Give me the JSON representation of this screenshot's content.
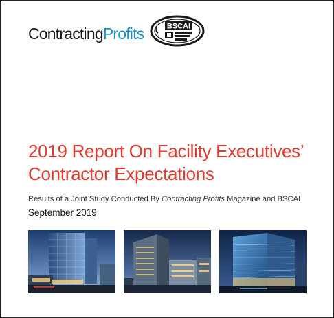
{
  "header": {
    "logo_part1": "Contracting",
    "logo_part2": "Profits",
    "seal_text": "BSCAI"
  },
  "report": {
    "title": "2019 Report On Facility Executives’ Contractor Expectations",
    "subtitle_prefix": "Results of a Joint Study Conducted By ",
    "subtitle_magazine": "Contracting Profits",
    "subtitle_suffix": " Magazine and BSCAI",
    "date": "September 2019"
  },
  "colors": {
    "title": "#e03a2f",
    "logo_blue": "#1b8fd0",
    "seal": "#1a1a1a"
  },
  "photos": [
    {
      "icon": "office-tower-dusk-photo"
    },
    {
      "icon": "office-complex-twilight-photo"
    },
    {
      "icon": "glass-office-night-photo"
    }
  ]
}
